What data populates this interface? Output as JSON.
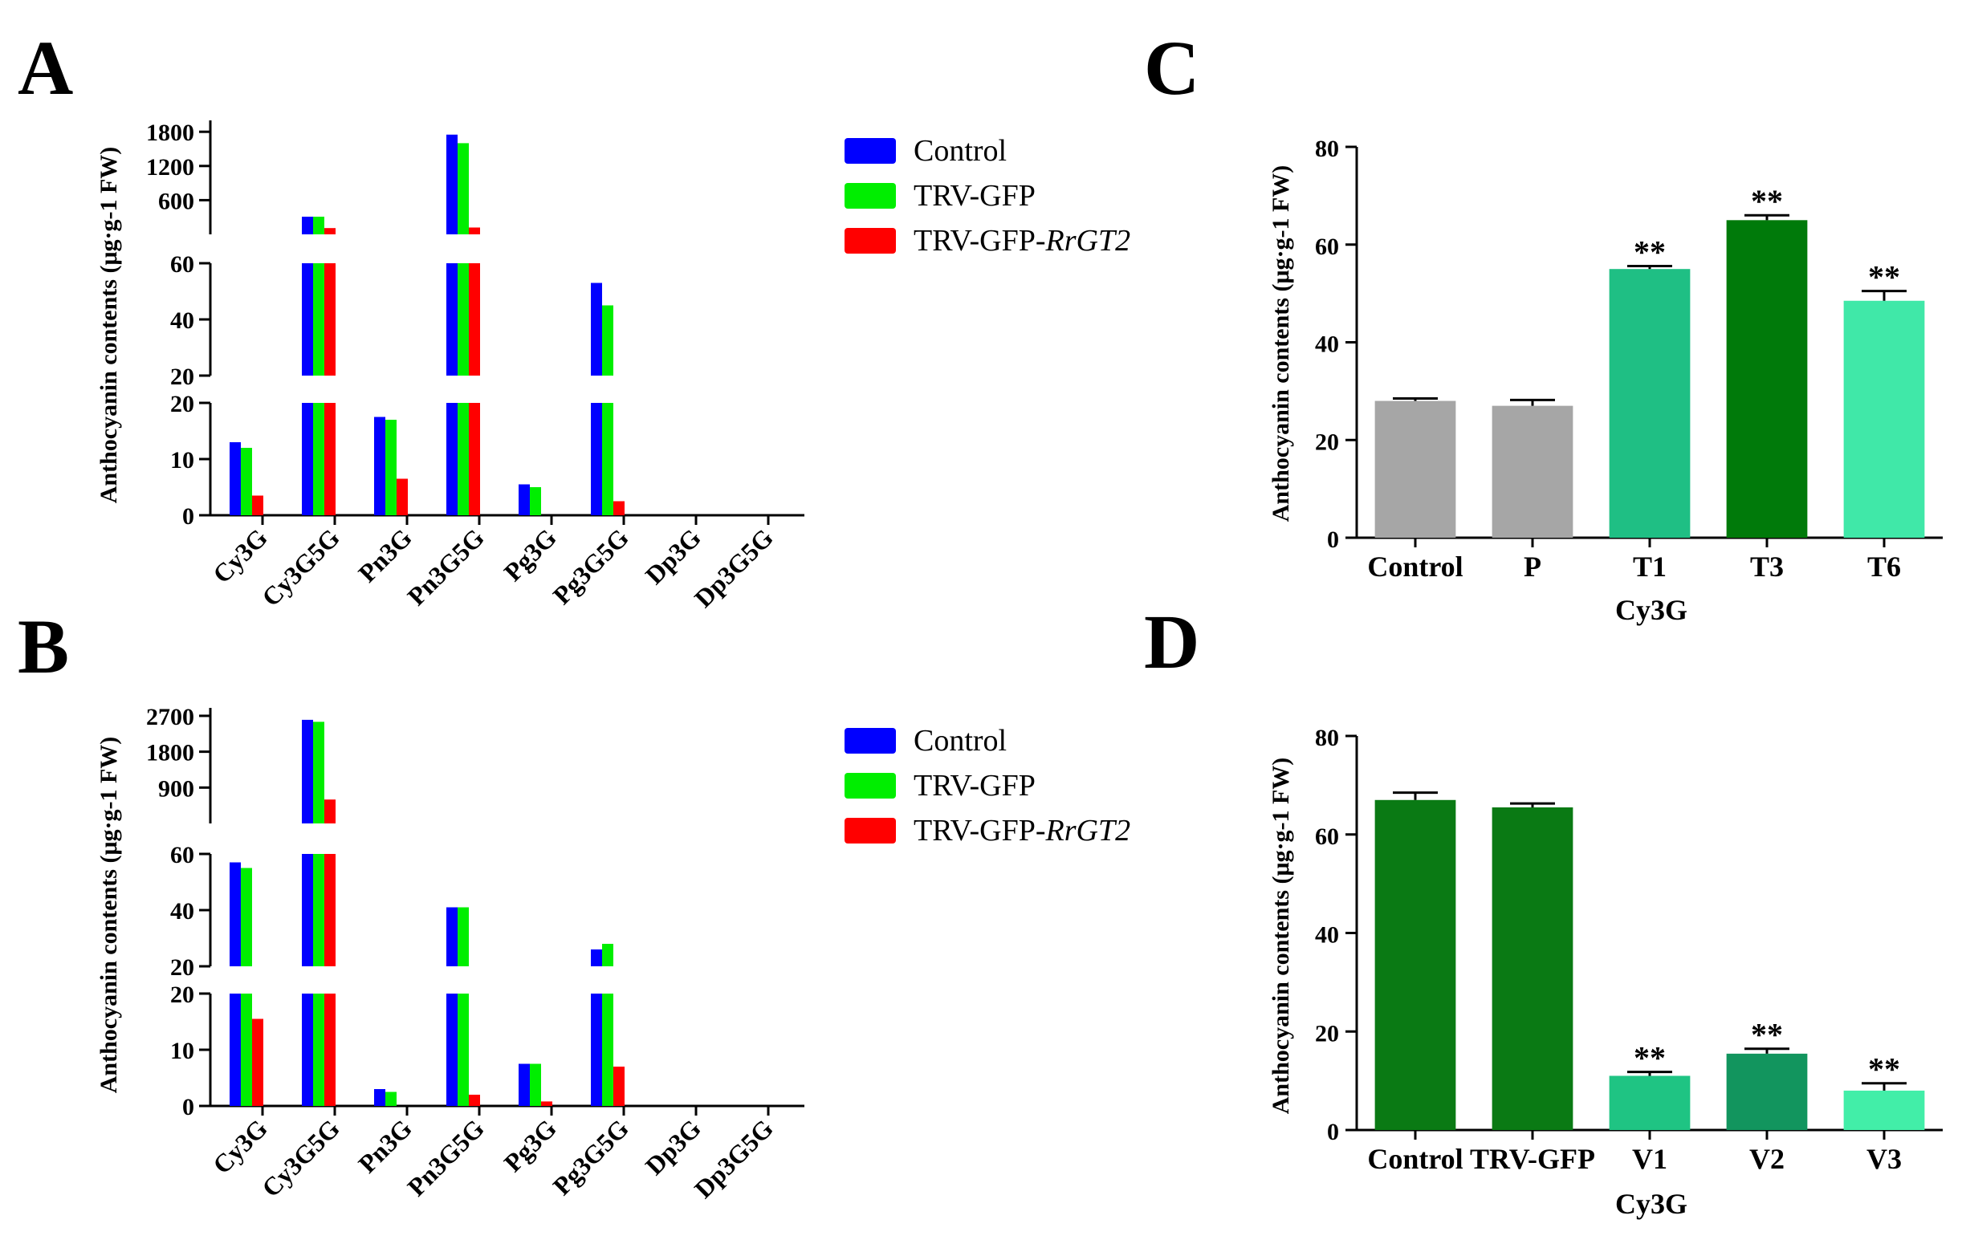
{
  "colors": {
    "control": "#0000ff",
    "trv_gfp": "#00ee00",
    "trv_gfp_rrgt2": "#ff0000",
    "grey": "#a6a6a6",
    "c_t1": "#1fbf84",
    "c_t3": "#007a0a",
    "c_t6": "#40e8a8",
    "d_control": "#0a7a14",
    "d_v1": "#1fc483",
    "d_v2": "#12955e",
    "d_v3": "#42eea8"
  },
  "chart_data": [
    {
      "panel_label": "A",
      "type": "bar",
      "ylabel": "Anthocyanin contents (μg·g-1 FW)",
      "axis_breaks": [
        {
          "range": [
            0,
            20
          ],
          "ticks": [
            "0",
            "10",
            "20"
          ]
        },
        {
          "range": [
            20,
            60
          ],
          "ticks": [
            "20",
            "40",
            "60"
          ]
        },
        {
          "range": [
            0,
            2000
          ],
          "ticks": [
            "600",
            "1200",
            "1800"
          ]
        }
      ],
      "categories": [
        "Cy3G",
        "Cy3G5G",
        "Pn3G",
        "Pn3G5G",
        "Pg3G",
        "Pg3G5G",
        "Dp3G",
        "Dp3G5G"
      ],
      "legend": [
        {
          "text": "Control"
        },
        {
          "text": "TRV-GFP"
        },
        {
          "text": "TRV-GFP-",
          "italic": "RrGT2"
        }
      ],
      "series": [
        {
          "name": "Control",
          "values": [
            13,
            310,
            17.5,
            1750,
            5.5,
            53,
            0,
            0
          ]
        },
        {
          "name": "TRV-GFP",
          "values": [
            12,
            310,
            17,
            1600,
            5,
            45,
            0,
            0
          ]
        },
        {
          "name": "TRV-GFP-RrGT2",
          "values": [
            3.5,
            110,
            6.5,
            120,
            0,
            2.5,
            0,
            0
          ]
        }
      ]
    },
    {
      "panel_label": "B",
      "type": "bar",
      "ylabel": "Anthocyanin contents (μg·g-1 FW)",
      "axis_breaks": [
        {
          "range": [
            0,
            20
          ],
          "ticks": [
            "0",
            "10",
            "20"
          ]
        },
        {
          "range": [
            20,
            60
          ],
          "ticks": [
            "20",
            "40",
            "60"
          ]
        },
        {
          "range": [
            0,
            2900
          ],
          "ticks": [
            "900",
            "1800",
            "2700"
          ]
        }
      ],
      "categories": [
        "Cy3G",
        "Cy3G5G",
        "Pn3G",
        "Pn3G5G",
        "Pg3G",
        "Pg3G5G",
        "Dp3G",
        "Dp3G5G"
      ],
      "legend": [
        {
          "text": "Control"
        },
        {
          "text": "TRV-GFP"
        },
        {
          "text": "TRV-GFP-",
          "italic": "RrGT2"
        }
      ],
      "series": [
        {
          "name": "Control",
          "values": [
            57,
            2600,
            3,
            41,
            7.5,
            26,
            0,
            0
          ]
        },
        {
          "name": "TRV-GFP",
          "values": [
            55,
            2550,
            2.5,
            41,
            7.5,
            28,
            0,
            0
          ]
        },
        {
          "name": "TRV-GFP-RrGT2",
          "values": [
            15.5,
            600,
            0,
            2,
            0.8,
            7,
            0,
            0
          ]
        }
      ]
    },
    {
      "panel_label": "C",
      "type": "bar",
      "ylabel": "Anthocyanin contents (μg·g-1 FW)",
      "xlabel": "Cy3G",
      "ylim": [
        0,
        80
      ],
      "yticks": [
        "0",
        "20",
        "40",
        "60",
        "80"
      ],
      "categories": [
        "Control",
        "P",
        "T1",
        "T3",
        "T6"
      ],
      "values": [
        28,
        27,
        55,
        65,
        48.5
      ],
      "errors": [
        0.5,
        1.2,
        0.6,
        1.0,
        2.0
      ],
      "significance": [
        "",
        "",
        "**",
        "**",
        "**"
      ]
    },
    {
      "panel_label": "D",
      "type": "bar",
      "ylabel": "Anthocyanin contents (μg·g-1 FW)",
      "xlabel": "Cy3G",
      "ylim": [
        0,
        80
      ],
      "yticks": [
        "0",
        "20",
        "40",
        "60",
        "80"
      ],
      "categories": [
        "Control",
        "TRV-GFP",
        "V1",
        "V2",
        "V3"
      ],
      "values": [
        67,
        65.5,
        11,
        15.5,
        8
      ],
      "errors": [
        1.5,
        0.8,
        0.8,
        1.0,
        1.5
      ],
      "significance": [
        "",
        "",
        "**",
        "**",
        "**"
      ]
    }
  ]
}
